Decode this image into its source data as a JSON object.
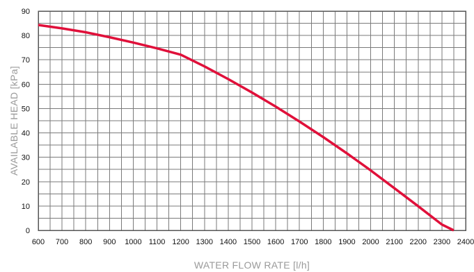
{
  "chart_data": {
    "type": "line",
    "title": "",
    "xlabel": "WATER FLOW RATE [l/h]",
    "ylabel": "AVAILABLE HEAD [kPa]",
    "xlim": [
      600,
      2400
    ],
    "ylim": [
      0,
      90
    ],
    "x_ticks": [
      600,
      700,
      800,
      900,
      1000,
      1100,
      1200,
      1300,
      1400,
      1500,
      1600,
      1700,
      1800,
      1900,
      2000,
      2100,
      2200,
      2300,
      2400
    ],
    "y_ticks": [
      0,
      10,
      20,
      30,
      40,
      50,
      60,
      70,
      80,
      90
    ],
    "x_minor_step": 50,
    "y_minor_step": 5,
    "grid": true,
    "legend": "none",
    "series": [
      {
        "color": "#e0103a",
        "points": [
          [
            600,
            84.3
          ],
          [
            700,
            82.9
          ],
          [
            800,
            81.3
          ],
          [
            900,
            79.3
          ],
          [
            1000,
            77.1
          ],
          [
            1100,
            74.7
          ],
          [
            1200,
            72.1
          ],
          [
            1300,
            67.3
          ],
          [
            1400,
            62.1
          ],
          [
            1500,
            56.6
          ],
          [
            1600,
            50.8
          ],
          [
            1700,
            44.7
          ],
          [
            1800,
            38.3
          ],
          [
            1900,
            31.6
          ],
          [
            2000,
            24.6
          ],
          [
            2100,
            17.3
          ],
          [
            2200,
            9.9
          ],
          [
            2300,
            2.4
          ],
          [
            2350,
            0
          ]
        ]
      }
    ]
  }
}
